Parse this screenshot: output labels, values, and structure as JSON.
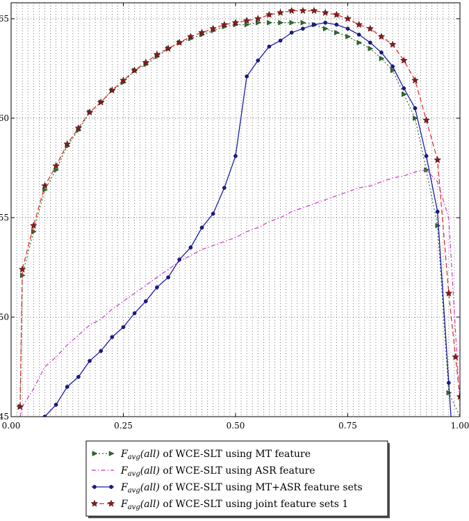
{
  "chart_data": {
    "type": "line",
    "title": "",
    "xlabel": "",
    "ylabel": "",
    "xlim": [
      0.0,
      1.0
    ],
    "ylim": [
      45,
      65.8
    ],
    "grid": true,
    "legend_position": "bottom",
    "x_ticks": [
      "0.00",
      "0.25",
      "0.50",
      "0.75",
      "1.00"
    ],
    "y_ticks": [
      "45",
      "50",
      "55",
      "60",
      "65"
    ],
    "series": [
      {
        "name_math": "F",
        "name_sub": "avg",
        "name_arg": "(all)",
        "name_text": " of WCE-SLT using MT feature",
        "color": "#2e6b2e",
        "style": "dotted",
        "marker": "triangle",
        "x": [
          0.02,
          0.025,
          0.05,
          0.075,
          0.1,
          0.125,
          0.15,
          0.175,
          0.2,
          0.225,
          0.25,
          0.275,
          0.3,
          0.325,
          0.35,
          0.375,
          0.4,
          0.425,
          0.45,
          0.475,
          0.5,
          0.525,
          0.55,
          0.575,
          0.6,
          0.625,
          0.65,
          0.675,
          0.7,
          0.725,
          0.75,
          0.775,
          0.8,
          0.825,
          0.85,
          0.875,
          0.9,
          0.925,
          0.95,
          0.975,
          1.0
        ],
        "y": [
          45.5,
          52.1,
          54.3,
          56.4,
          57.4,
          58.6,
          59.4,
          60.3,
          60.8,
          61.4,
          61.8,
          62.4,
          62.7,
          63.1,
          63.5,
          63.8,
          64.0,
          64.2,
          64.4,
          64.6,
          64.7,
          64.7,
          64.8,
          64.8,
          64.8,
          64.8,
          64.8,
          64.7,
          64.5,
          64.3,
          64.1,
          63.8,
          63.5,
          63.0,
          62.4,
          61.2,
          60.0,
          57.4,
          54.6,
          46.2,
          45.0
        ]
      },
      {
        "name_math": "F",
        "name_sub": "avg",
        "name_arg": "(all)",
        "name_text": " of WCE-SLT using ASR feature",
        "color": "#cc33cc",
        "style": "dashdot",
        "marker": "none",
        "x": [
          0.02,
          0.025,
          0.05,
          0.075,
          0.1,
          0.125,
          0.15,
          0.175,
          0.2,
          0.225,
          0.25,
          0.275,
          0.3,
          0.325,
          0.35,
          0.375,
          0.4,
          0.425,
          0.45,
          0.475,
          0.5,
          0.525,
          0.55,
          0.575,
          0.6,
          0.625,
          0.65,
          0.675,
          0.7,
          0.725,
          0.75,
          0.775,
          0.8,
          0.825,
          0.85,
          0.875,
          0.9,
          0.925,
          0.95,
          0.975,
          1.0
        ],
        "y": [
          45.0,
          45.5,
          46.4,
          47.5,
          48.0,
          48.6,
          49.1,
          49.6,
          49.9,
          50.4,
          50.8,
          51.2,
          51.6,
          52.0,
          52.4,
          52.8,
          53.1,
          53.4,
          53.6,
          53.8,
          54.0,
          54.3,
          54.5,
          54.8,
          55.0,
          55.3,
          55.5,
          55.7,
          55.9,
          56.1,
          56.3,
          56.5,
          56.6,
          56.8,
          57.0,
          57.1,
          57.3,
          57.4,
          56.8,
          55.0,
          45.5
        ]
      },
      {
        "name_math": "F",
        "name_sub": "avg",
        "name_arg": "(all)",
        "name_text": " of WCE-SLT using MT+ASR feature sets",
        "color": "#1a1aaa",
        "style": "solid",
        "marker": "dot",
        "x": [
          0.075,
          0.1,
          0.125,
          0.15,
          0.175,
          0.2,
          0.225,
          0.25,
          0.275,
          0.3,
          0.325,
          0.35,
          0.375,
          0.4,
          0.425,
          0.45,
          0.475,
          0.5,
          0.525,
          0.55,
          0.575,
          0.6,
          0.625,
          0.65,
          0.675,
          0.7,
          0.725,
          0.75,
          0.775,
          0.8,
          0.825,
          0.85,
          0.875,
          0.9,
          0.925,
          0.95,
          0.975,
          0.98
        ],
        "y": [
          45.0,
          45.6,
          46.5,
          47.0,
          47.8,
          48.3,
          49.0,
          49.5,
          50.2,
          50.8,
          51.5,
          52.0,
          52.9,
          53.5,
          54.5,
          55.2,
          56.5,
          58.1,
          62.1,
          62.9,
          63.6,
          63.9,
          64.3,
          64.5,
          64.7,
          64.8,
          64.7,
          64.5,
          64.2,
          63.8,
          63.3,
          62.6,
          61.5,
          60.5,
          58.1,
          55.3,
          46.7,
          45.0
        ]
      },
      {
        "name_math": "F",
        "name_sub": "avg",
        "name_arg": "(all)",
        "name_text": " of WCE-SLT using joint feature sets 1",
        "color": "#dd2222",
        "style": "dashed",
        "marker": "star",
        "x": [
          0.02,
          0.025,
          0.05,
          0.075,
          0.1,
          0.125,
          0.15,
          0.175,
          0.2,
          0.225,
          0.25,
          0.275,
          0.3,
          0.325,
          0.35,
          0.375,
          0.4,
          0.425,
          0.45,
          0.475,
          0.5,
          0.525,
          0.55,
          0.575,
          0.6,
          0.625,
          0.65,
          0.675,
          0.7,
          0.725,
          0.75,
          0.775,
          0.8,
          0.825,
          0.85,
          0.875,
          0.9,
          0.925,
          0.95,
          0.975,
          0.99,
          1.0
        ],
        "y": [
          45.5,
          52.4,
          54.6,
          56.6,
          57.6,
          58.7,
          59.5,
          60.3,
          60.8,
          61.4,
          61.9,
          62.4,
          62.8,
          63.2,
          63.5,
          63.8,
          64.1,
          64.3,
          64.5,
          64.7,
          64.8,
          64.9,
          65.0,
          65.2,
          65.3,
          65.4,
          65.4,
          65.4,
          65.3,
          65.2,
          65.0,
          64.7,
          64.5,
          64.1,
          63.7,
          62.9,
          61.9,
          59.9,
          57.9,
          51.2,
          48.0,
          46.0
        ]
      }
    ]
  }
}
